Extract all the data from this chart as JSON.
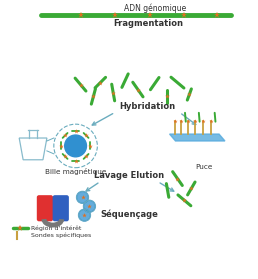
{
  "bg_color": "#ffffff",
  "dna_color": "#3aaa35",
  "star_color": "#e07020",
  "probe_color": "#c8a040",
  "magnet_red": "#e03030",
  "magnet_blue": "#3060c0",
  "bead_color": "#3090d0",
  "chip_color": "#55aadd",
  "arrow_color": "#6aacbe",
  "text_color": "#333333",
  "label_adn": "ADN génomique",
  "label_fragmentation": "Fragmentation",
  "label_hybridation": "Hybridation",
  "label_bille": "Bille magnétique",
  "label_puce": "Puce",
  "label_lavage": "Lavage Elution",
  "label_sequencage": "Séquençage",
  "legend_region": "Région d'intérêt",
  "legend_sonde": "Sondes spécifiques",
  "fragments": [
    [
      80,
      195,
      130,
      17,
      true
    ],
    [
      93,
      183,
      75,
      16,
      true
    ],
    [
      100,
      197,
      45,
      15,
      true
    ],
    [
      113,
      187,
      100,
      17,
      true
    ],
    [
      125,
      199,
      65,
      15,
      false
    ],
    [
      138,
      190,
      125,
      18,
      true
    ],
    [
      155,
      196,
      55,
      15,
      false
    ],
    [
      167,
      183,
      90,
      14,
      true
    ],
    [
      178,
      197,
      140,
      17,
      false
    ],
    [
      190,
      185,
      70,
      12,
      true
    ]
  ],
  "seq_fragments": [
    [
      178,
      100,
      125,
      17,
      true
    ],
    [
      192,
      90,
      60,
      15,
      true
    ],
    [
      168,
      88,
      100,
      14,
      false
    ],
    [
      185,
      78,
      140,
      17,
      true
    ]
  ]
}
